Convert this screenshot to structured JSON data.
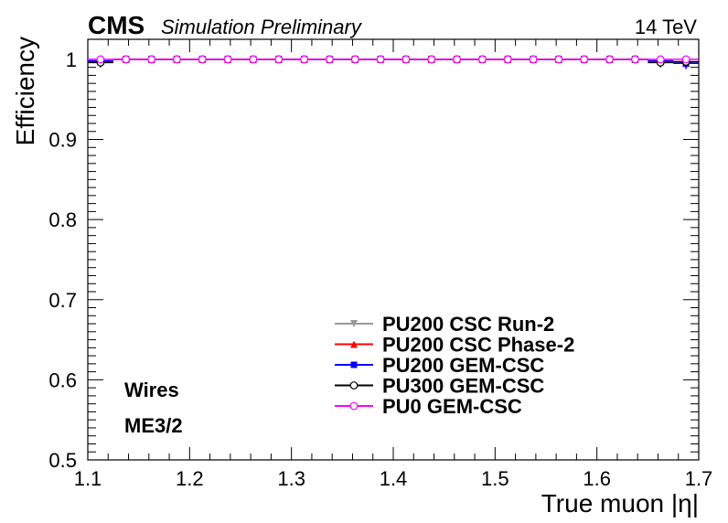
{
  "header": {
    "experiment": "CMS",
    "subtitle": "Simulation Preliminary",
    "energy": "14 TeV"
  },
  "annotations": [
    "Wires",
    "ME3/2"
  ],
  "chart_data": {
    "type": "scatter",
    "xlabel": "True muon |η|",
    "ylabel": "Efficiency",
    "xlim": [
      1.1,
      1.7
    ],
    "ylim": [
      0.5,
      1.025
    ],
    "xticks": [
      "1.1",
      "1.2",
      "1.3",
      "1.4",
      "1.5",
      "1.6",
      "1.7"
    ],
    "yticks": [
      "0.5",
      "0.6",
      "0.7",
      "0.8",
      "0.9",
      "1"
    ],
    "legend_position": "center-right",
    "x": [
      1.1125,
      1.1375,
      1.1625,
      1.1875,
      1.2125,
      1.2375,
      1.2625,
      1.2875,
      1.3125,
      1.3375,
      1.3625,
      1.3875,
      1.4125,
      1.4375,
      1.4625,
      1.4875,
      1.5125,
      1.5375,
      1.5625,
      1.5875,
      1.6125,
      1.6375,
      1.6625,
      1.6875
    ],
    "series": [
      {
        "name": "PU200 CSC Run-2",
        "color": "#999999",
        "marker": "triangle-down",
        "values": [
          0.997,
          1.0,
          1.0,
          1.0,
          1.0,
          1.0,
          1.0,
          1.0,
          1.0,
          1.0,
          1.0,
          1.0,
          1.0,
          1.0,
          1.0,
          1.0,
          1.0,
          1.0,
          1.0,
          1.0,
          1.0,
          1.0,
          0.998,
          0.996
        ]
      },
      {
        "name": "PU200 CSC Phase-2",
        "color": "#ff0000",
        "marker": "triangle-up",
        "values": [
          0.998,
          1.0,
          1.0,
          1.0,
          1.0,
          1.0,
          1.0,
          1.0,
          1.0,
          1.0,
          1.0,
          1.0,
          1.0,
          1.0,
          1.0,
          1.0,
          1.0,
          1.0,
          1.0,
          1.0,
          1.0,
          1.0,
          0.998,
          0.995
        ]
      },
      {
        "name": "PU200 GEM-CSC",
        "color": "#0000ff",
        "marker": "square",
        "values": [
          0.998,
          1.0,
          1.0,
          1.0,
          1.0,
          1.0,
          1.0,
          1.0,
          1.0,
          1.0,
          1.0,
          1.0,
          1.0,
          1.0,
          1.0,
          1.0,
          1.0,
          1.0,
          1.0,
          1.0,
          1.0,
          1.0,
          0.998,
          0.995
        ]
      },
      {
        "name": "PU300 GEM-CSC",
        "color": "#000000",
        "marker": "open-circle",
        "values": [
          0.996,
          1.0,
          1.0,
          1.0,
          1.0,
          1.0,
          1.0,
          1.0,
          1.0,
          1.0,
          1.0,
          1.0,
          1.0,
          1.0,
          1.0,
          1.0,
          1.0,
          1.0,
          1.0,
          1.0,
          1.0,
          1.0,
          0.996,
          0.997
        ]
      },
      {
        "name": "PU0 GEM-CSC",
        "color": "#ff00ff",
        "marker": "open-circle",
        "values": [
          1.0,
          1.0,
          1.0,
          1.0,
          1.0,
          1.0,
          1.0,
          1.0,
          1.0,
          1.0,
          1.0,
          1.0,
          1.0,
          1.0,
          1.0,
          1.0,
          1.0,
          1.0,
          1.0,
          1.0,
          1.0,
          1.0,
          1.0,
          1.0
        ]
      }
    ]
  }
}
